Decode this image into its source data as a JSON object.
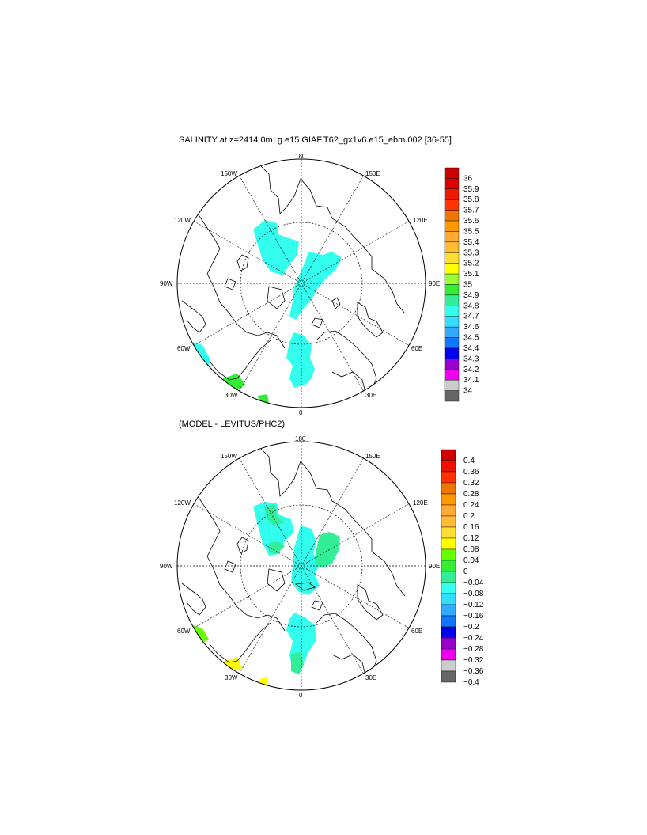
{
  "titles": {
    "top": "SALINITY at z=2414.0m, g.e15.GIAF.T62_gx1v6.e15_ebm.002 [36-55]",
    "bottom": "(MODEL - LEVITUS/PHC2)"
  },
  "map_labels": {
    "lon_180": "180",
    "lon_150W": "150W",
    "lon_150E": "150E",
    "lon_120W": "120W",
    "lon_120E": "120E",
    "lon_90W": "90W",
    "lon_90E": "90E",
    "lon_60W": "60W",
    "lon_60E": "60E",
    "lon_30W": "30W",
    "lon_30E": "30E",
    "lon_0": "0"
  },
  "colorbar_top": {
    "labels": [
      "36",
      "35.9",
      "35.8",
      "35.7",
      "35.6",
      "35.5",
      "35.4",
      "35.3",
      "35.2",
      "35.1",
      "35",
      "34.9",
      "34.8",
      "34.7",
      "34.6",
      "34.5",
      "34.4",
      "34.3",
      "34.2",
      "34.1",
      "34"
    ],
    "colors": [
      "#cc0000",
      "#dd0000",
      "#ee1a00",
      "#ff3300",
      "#ee7700",
      "#ff9900",
      "#ffaa33",
      "#ffbb33",
      "#ffdd33",
      "#ffff00",
      "#99ff33",
      "#33ee33",
      "#33ee99",
      "#33ffee",
      "#33ddff",
      "#33aaff",
      "#1177ff",
      "#0000ee",
      "#9900cc",
      "#ee00ee",
      "#cccccc",
      "#666666"
    ]
  },
  "colorbar_bottom": {
    "labels": [
      "0.4",
      "0.36",
      "0.32",
      "0.28",
      "0.24",
      "0.2",
      "0.16",
      "0.12",
      "0.08",
      "0.04",
      "0",
      "−0.04",
      "−0.08",
      "−0.12",
      "−0.16",
      "−0.2",
      "−0.24",
      "−0.28",
      "−0.32",
      "−0.36",
      "−0.4"
    ],
    "colors": [
      "#cc0000",
      "#ee1100",
      "#ff3300",
      "#ee7700",
      "#ff9900",
      "#ffaa33",
      "#ffbb33",
      "#ffdd33",
      "#ffff00",
      "#66ff00",
      "#33ee33",
      "#33ee99",
      "#33ffee",
      "#33ddff",
      "#33aaff",
      "#1177ff",
      "#0000ee",
      "#9900cc",
      "#ee00ee",
      "#cccccc",
      "#666666"
    ]
  }
}
